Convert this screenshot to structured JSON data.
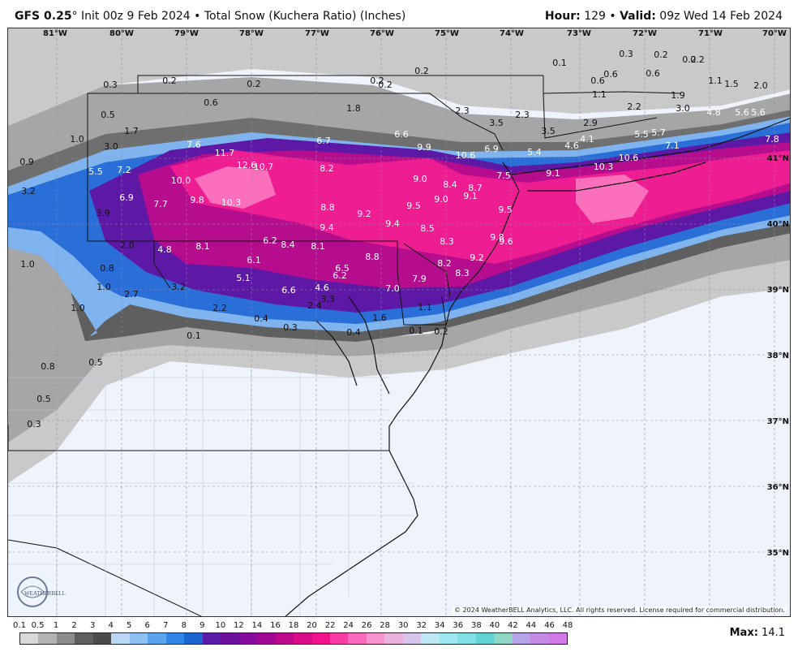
{
  "header": {
    "model": "GFS 0.25",
    "degree": "°",
    "init": "Init 00z 9 Feb 2024",
    "bullet": "•",
    "product": "Total Snow (Kuchera Ratio) (Inches)",
    "hour_label": "Hour:",
    "hour_value": "129",
    "valid_label": "Valid:",
    "valid_value": "09z Wed 14 Feb 2024"
  },
  "map": {
    "longitude_labels": [
      "81°W",
      "80°W",
      "79°W",
      "78°W",
      "77°W",
      "76°W",
      "75°W",
      "74°W",
      "73°W",
      "72°W",
      "71°W",
      "70°W"
    ],
    "latitude_labels": [
      "41°N",
      "40°N",
      "39°N",
      "38°N",
      "37°N",
      "36°N",
      "35°N"
    ],
    "copyright": "© 2024 WeatherBELL Analytics, LLC. All rights reserved. License required for commercial distribution.",
    "logo_text": "WEATHERBELL",
    "snow_values": [
      {
        "v": "0.2"
      },
      {
        "v": "0.2"
      },
      {
        "v": "0.2"
      },
      {
        "v": "0.2"
      },
      {
        "v": "0.3"
      },
      {
        "v": "0.2"
      },
      {
        "v": "0.1"
      },
      {
        "v": "0.3"
      },
      {
        "v": "0.2"
      },
      {
        "v": "0.2"
      },
      {
        "v": "0.6"
      },
      {
        "v": "0.5"
      },
      {
        "v": "0.6"
      },
      {
        "v": "1.1"
      },
      {
        "v": "1.5"
      },
      {
        "v": "2.0"
      },
      {
        "v": "0.2"
      },
      {
        "v": "0.6"
      },
      {
        "v": "0.6"
      },
      {
        "v": "1.8"
      },
      {
        "v": "2.3"
      },
      {
        "v": "2.3"
      },
      {
        "v": "3.5"
      },
      {
        "v": "1.1"
      },
      {
        "v": "2.2"
      },
      {
        "v": "1.9"
      },
      {
        "v": "3.0"
      },
      {
        "v": "4.8"
      },
      {
        "v": "5.6"
      },
      {
        "v": "5.6"
      },
      {
        "v": "1.0"
      },
      {
        "v": "1.7"
      },
      {
        "v": "3.0"
      },
      {
        "v": "7.6"
      },
      {
        "v": "11.7"
      },
      {
        "v": "6.7"
      },
      {
        "v": "6.6"
      },
      {
        "v": "3.5"
      },
      {
        "v": "2.9"
      },
      {
        "v": "5.5"
      },
      {
        "v": "5.7"
      },
      {
        "v": "7.1"
      },
      {
        "v": "7.8"
      },
      {
        "v": "0.9"
      },
      {
        "v": "5.5"
      },
      {
        "v": "7.2"
      },
      {
        "v": "12.6"
      },
      {
        "v": "10.7"
      },
      {
        "v": "8.2"
      },
      {
        "v": "9.9"
      },
      {
        "v": "10.6"
      },
      {
        "v": "6.9"
      },
      {
        "v": "5.4"
      },
      {
        "v": "4.6"
      },
      {
        "v": "4.1"
      },
      {
        "v": "10.6"
      },
      {
        "v": "3.2"
      },
      {
        "v": "10.0"
      },
      {
        "v": "9.0"
      },
      {
        "v": "7.5"
      },
      {
        "v": "9.1"
      },
      {
        "v": "10.3"
      },
      {
        "v": "6.9"
      },
      {
        "v": "7.7"
      },
      {
        "v": "9.8"
      },
      {
        "v": "10.3"
      },
      {
        "v": "8.4"
      },
      {
        "v": "8.7"
      },
      {
        "v": "9.1"
      },
      {
        "v": "9.0"
      },
      {
        "v": "8.8"
      },
      {
        "v": "9.2"
      },
      {
        "v": "9.5"
      },
      {
        "v": "9.5"
      },
      {
        "v": "3.9"
      },
      {
        "v": "9.4"
      },
      {
        "v": "9.4"
      },
      {
        "v": "8.5"
      },
      {
        "v": "9.8"
      },
      {
        "v": "9.6"
      },
      {
        "v": "2.0"
      },
      {
        "v": "4.8"
      },
      {
        "v": "8.1"
      },
      {
        "v": "6.2"
      },
      {
        "v": "8.4"
      },
      {
        "v": "8.1"
      },
      {
        "v": "8.3"
      },
      {
        "v": "8.8"
      },
      {
        "v": "9.2"
      },
      {
        "v": "1.0"
      },
      {
        "v": "0.8"
      },
      {
        "v": "6.1"
      },
      {
        "v": "6.5"
      },
      {
        "v": "8.2"
      },
      {
        "v": "8.3"
      },
      {
        "v": "5.1"
      },
      {
        "v": "6.2"
      },
      {
        "v": "7.0"
      },
      {
        "v": "7.9"
      },
      {
        "v": "1.0"
      },
      {
        "v": "3.2"
      },
      {
        "v": "6.6"
      },
      {
        "v": "4.6"
      },
      {
        "v": "2.7"
      },
      {
        "v": "3.3"
      },
      {
        "v": "1.0"
      },
      {
        "v": "2.2"
      },
      {
        "v": "1.1"
      },
      {
        "v": "0.4"
      },
      {
        "v": "0.3"
      },
      {
        "v": "2.4"
      },
      {
        "v": "1.6"
      },
      {
        "v": "0.1"
      },
      {
        "v": "0.4"
      },
      {
        "v": "0.1"
      },
      {
        "v": "0.2"
      },
      {
        "v": "0.5"
      },
      {
        "v": "0.8"
      },
      {
        "v": "0.5"
      },
      {
        "v": "0.3"
      }
    ]
  },
  "legend": {
    "ticks": [
      "0.1",
      "0.5",
      "1",
      "2",
      "3",
      "4",
      "5",
      "6",
      "7",
      "8",
      "9",
      "10",
      "12",
      "14",
      "16",
      "18",
      "20",
      "22",
      "24",
      "26",
      "28",
      "30",
      "32",
      "34",
      "36",
      "38",
      "40",
      "42",
      "44",
      "46",
      "48"
    ],
    "colors": [
      "#d9d9d9",
      "#b3b3b3",
      "#8c8c8c",
      "#5e5e5e",
      "#4a4a4a",
      "#bcd7f5",
      "#8fc0f2",
      "#5aa4ee",
      "#2f86e6",
      "#1b63d0",
      "#5a1aa8",
      "#6a0f9e",
      "#860b9c",
      "#a00894",
      "#bd0a8c",
      "#d90b86",
      "#f0138c",
      "#fa3ca6",
      "#fb6bbc",
      "#f993cd",
      "#e9b3de",
      "#d7c4ea",
      "#bde8f4",
      "#9fe7ef",
      "#81e0e4",
      "#62d4d6",
      "#8fd6c4",
      "#b6a3e8",
      "#c48ae6",
      "#d07ae8"
    ],
    "max_label": "Max:",
    "max_value": "14.1"
  }
}
